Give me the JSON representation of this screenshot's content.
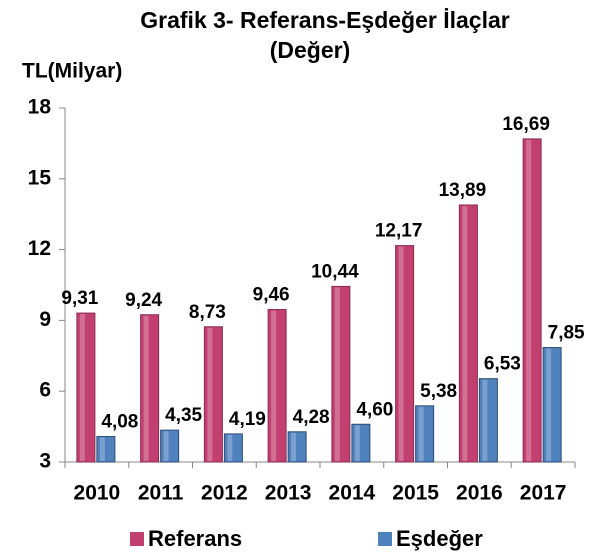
{
  "chart_data": {
    "type": "bar",
    "title": "Grafik 3- Referans-Eşdeğer İlaçlar",
    "subtitle": "(Değer)",
    "y_label": "TL(Milyar)",
    "categories": [
      "2010",
      "2011",
      "2012",
      "2013",
      "2014",
      "2015",
      "2016",
      "2017"
    ],
    "series": [
      {
        "name": "Referans",
        "color": "#c2406f",
        "values": [
          9.31,
          9.24,
          8.73,
          9.46,
          10.44,
          12.17,
          13.89,
          16.69
        ],
        "value_labels": [
          "9,31",
          "9,24",
          "8,73",
          "9,46",
          "10,44",
          "12,17",
          "13,89",
          "16,69"
        ]
      },
      {
        "name": "Eşdeğer",
        "color": "#4f81bd",
        "values": [
          4.08,
          4.35,
          4.19,
          4.28,
          4.6,
          5.38,
          6.53,
          7.85
        ],
        "value_labels": [
          "4,08",
          "4,35",
          "4,19",
          "4,28",
          "4,60",
          "5,38",
          "6,53",
          "7,85"
        ]
      }
    ],
    "ylim": [
      3,
      18
    ],
    "yticks": [
      3,
      6,
      9,
      12,
      15,
      18
    ],
    "grid": false,
    "legend": "bottom"
  }
}
